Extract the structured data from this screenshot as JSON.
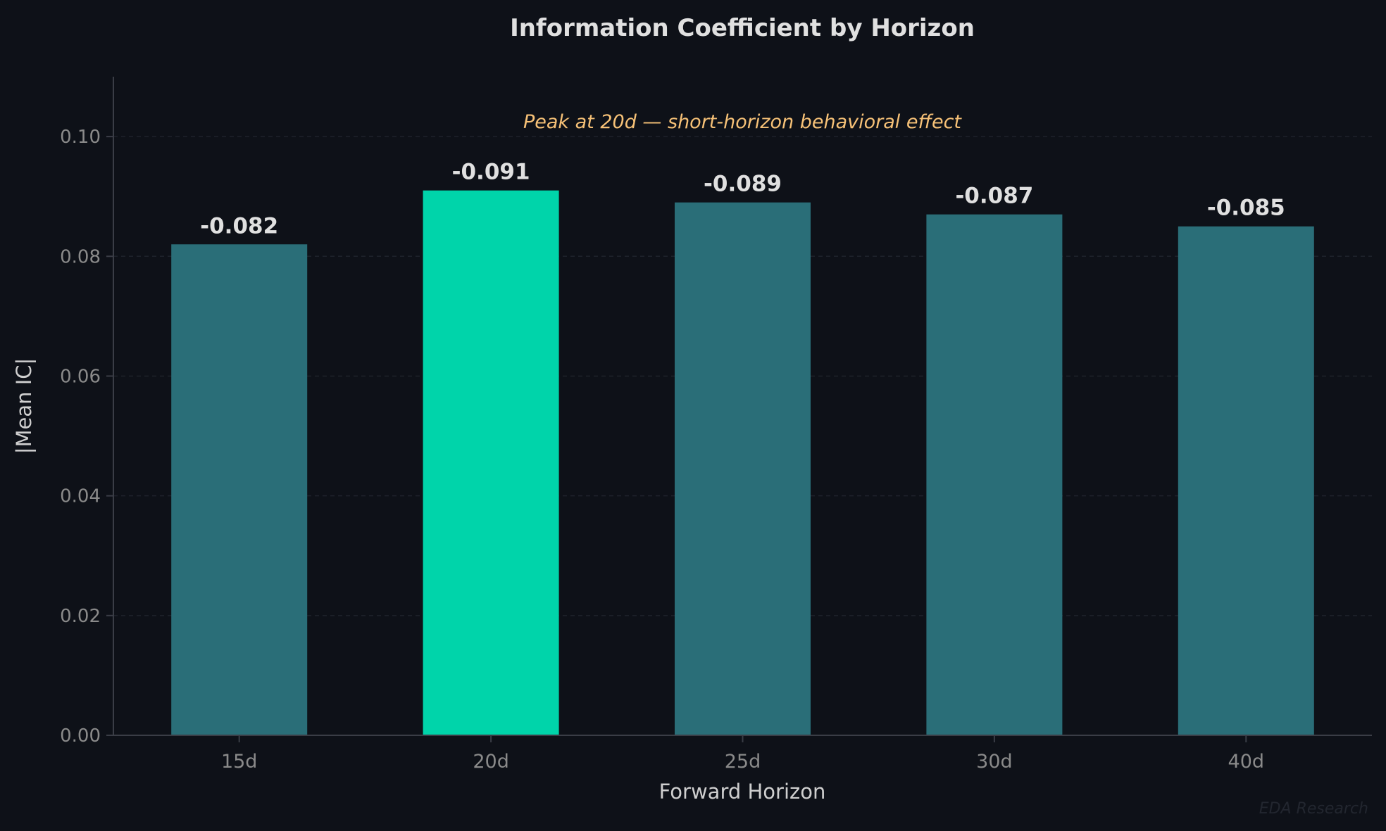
{
  "chart_data": {
    "type": "bar",
    "title": "Information Coefficient by Horizon",
    "xlabel": "Forward Horizon",
    "ylabel": "|Mean IC|",
    "categories": [
      "15d",
      "20d",
      "25d",
      "30d",
      "40d"
    ],
    "values": [
      0.082,
      0.091,
      0.089,
      0.087,
      0.085
    ],
    "data_labels": [
      "-0.082",
      "-0.091",
      "-0.089",
      "-0.087",
      "-0.085"
    ],
    "highlight_index": 1,
    "ylim": [
      0,
      0.11
    ],
    "yticks": [
      0.0,
      0.02,
      0.04,
      0.06,
      0.08,
      0.1
    ],
    "ytick_labels": [
      "0.00",
      "0.02",
      "0.04",
      "0.06",
      "0.08",
      "0.10"
    ],
    "grid": "horizontal dashed",
    "annotation": "Peak at 20d — short-horizon behavioral effect",
    "watermark": "EDA Research",
    "colors": {
      "background": "#0e1118",
      "bar": "#2a6e78",
      "highlight": "#00d4aa",
      "annotation": "#f6c177",
      "text": "#e0e0e0",
      "tick": "#8a8a8a"
    }
  }
}
